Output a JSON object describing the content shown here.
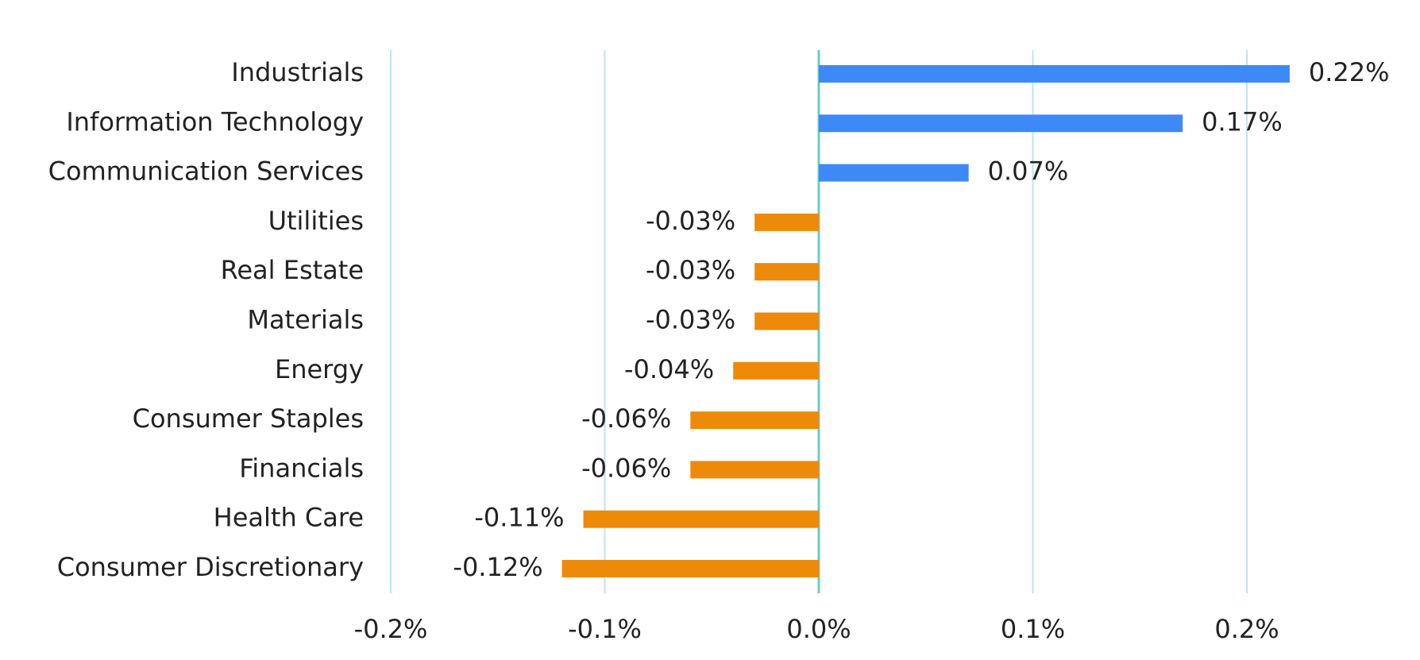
{
  "chart_data": {
    "type": "hbar",
    "categories": [
      "Industrials",
      "Information Technology",
      "Communication Services",
      "Utilities",
      "Real Estate",
      "Materials",
      "Energy",
      "Consumer Staples",
      "Financials",
      "Health Care",
      "Consumer Discretionary"
    ],
    "values": [
      0.22,
      0.17,
      0.07,
      -0.03,
      -0.03,
      -0.03,
      -0.04,
      -0.06,
      -0.06,
      -0.11,
      -0.12
    ],
    "value_labels": [
      "0.22%",
      "0.17%",
      "0.07%",
      "-0.03%",
      "-0.03%",
      "-0.03%",
      "-0.04%",
      "-0.06%",
      "-0.06%",
      "-0.11%",
      "-0.12%"
    ],
    "positive_color": "#3d8af7",
    "negative_color": "#ee8a0a",
    "xlim": [
      -0.2,
      0.26
    ],
    "xticks": [
      {
        "value": -0.2,
        "label": "-0.2%"
      },
      {
        "value": -0.1,
        "label": "-0.1%"
      },
      {
        "value": 0,
        "label": "0.0%"
      },
      {
        "value": 0.1,
        "label": "0.1%"
      },
      {
        "value": 0.2,
        "label": "0.2%"
      }
    ],
    "grid": true
  }
}
